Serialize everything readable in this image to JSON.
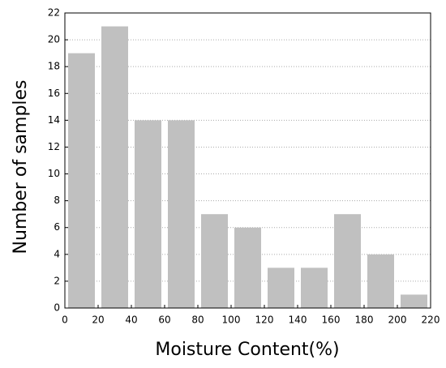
{
  "chart_data": {
    "type": "histogram",
    "xlabel": "Moisture Content(%)",
    "ylabel": "Number of samples",
    "bins": [
      0,
      20,
      40,
      60,
      80,
      100,
      120,
      140,
      160,
      180,
      200,
      220
    ],
    "values": [
      19,
      21,
      14,
      14,
      7,
      6,
      3,
      3,
      7,
      4,
      1
    ],
    "color": "#c0c0c0",
    "xlim": [
      0,
      220
    ],
    "xticks": [
      0,
      20,
      40,
      60,
      80,
      100,
      120,
      140,
      160,
      180,
      200,
      220
    ],
    "ylim": [
      0,
      22
    ],
    "yticks": [
      0,
      2,
      4,
      6,
      8,
      10,
      12,
      14,
      16,
      18,
      20,
      22
    ],
    "grid": true
  }
}
